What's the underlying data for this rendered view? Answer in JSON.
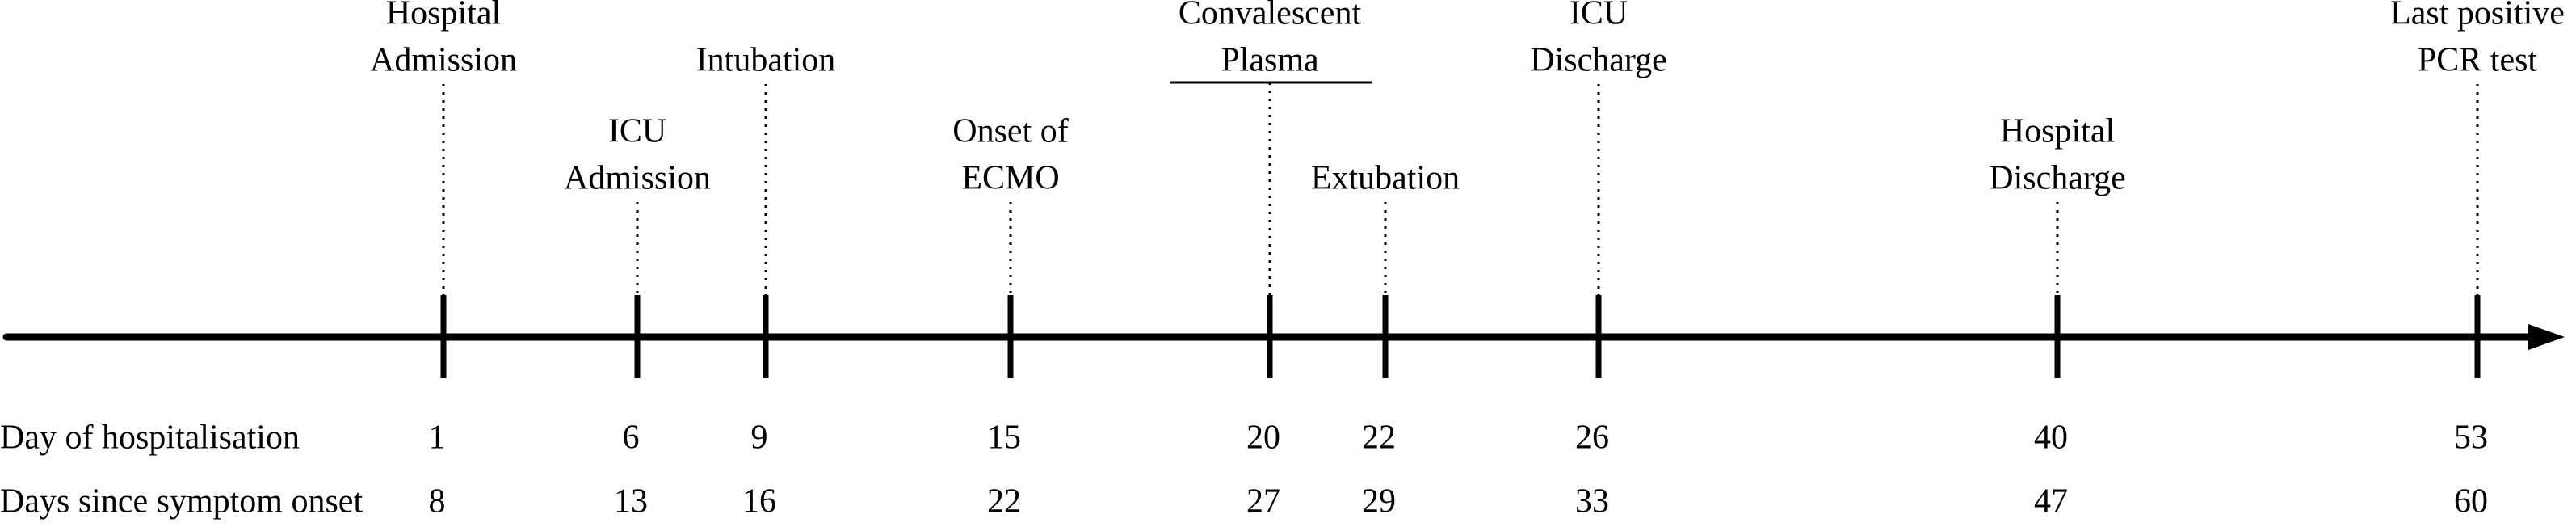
{
  "row_labels": {
    "hospital_day": "Day of hospitalisation",
    "symptom_day": "Days since symptom onset"
  },
  "events": [
    {
      "label_lines": [
        "Hospital",
        "Admission"
      ],
      "hospital_day": "1",
      "symptom_day": "8"
    },
    {
      "label_lines": [
        "ICU",
        "Admission"
      ],
      "hospital_day": "6",
      "symptom_day": "13"
    },
    {
      "label_lines": [
        "Intubation"
      ],
      "hospital_day": "9",
      "symptom_day": "16"
    },
    {
      "label_lines": [
        "Onset of",
        "ECMO"
      ],
      "hospital_day": "15",
      "symptom_day": "22"
    },
    {
      "label_lines": [
        "Convalescent",
        "Plasma"
      ],
      "hospital_day": "20",
      "symptom_day": "27"
    },
    {
      "label_lines": [
        "Extubation"
      ],
      "hospital_day": "22",
      "symptom_day": "29"
    },
    {
      "label_lines": [
        "ICU",
        "Discharge"
      ],
      "hospital_day": "26",
      "symptom_day": "33"
    },
    {
      "label_lines": [
        "Hospital",
        "Discharge"
      ],
      "hospital_day": "40",
      "symptom_day": "47"
    },
    {
      "label_lines": [
        "Last positive",
        "PCR test"
      ],
      "hospital_day": "53",
      "symptom_day": "60"
    }
  ]
}
